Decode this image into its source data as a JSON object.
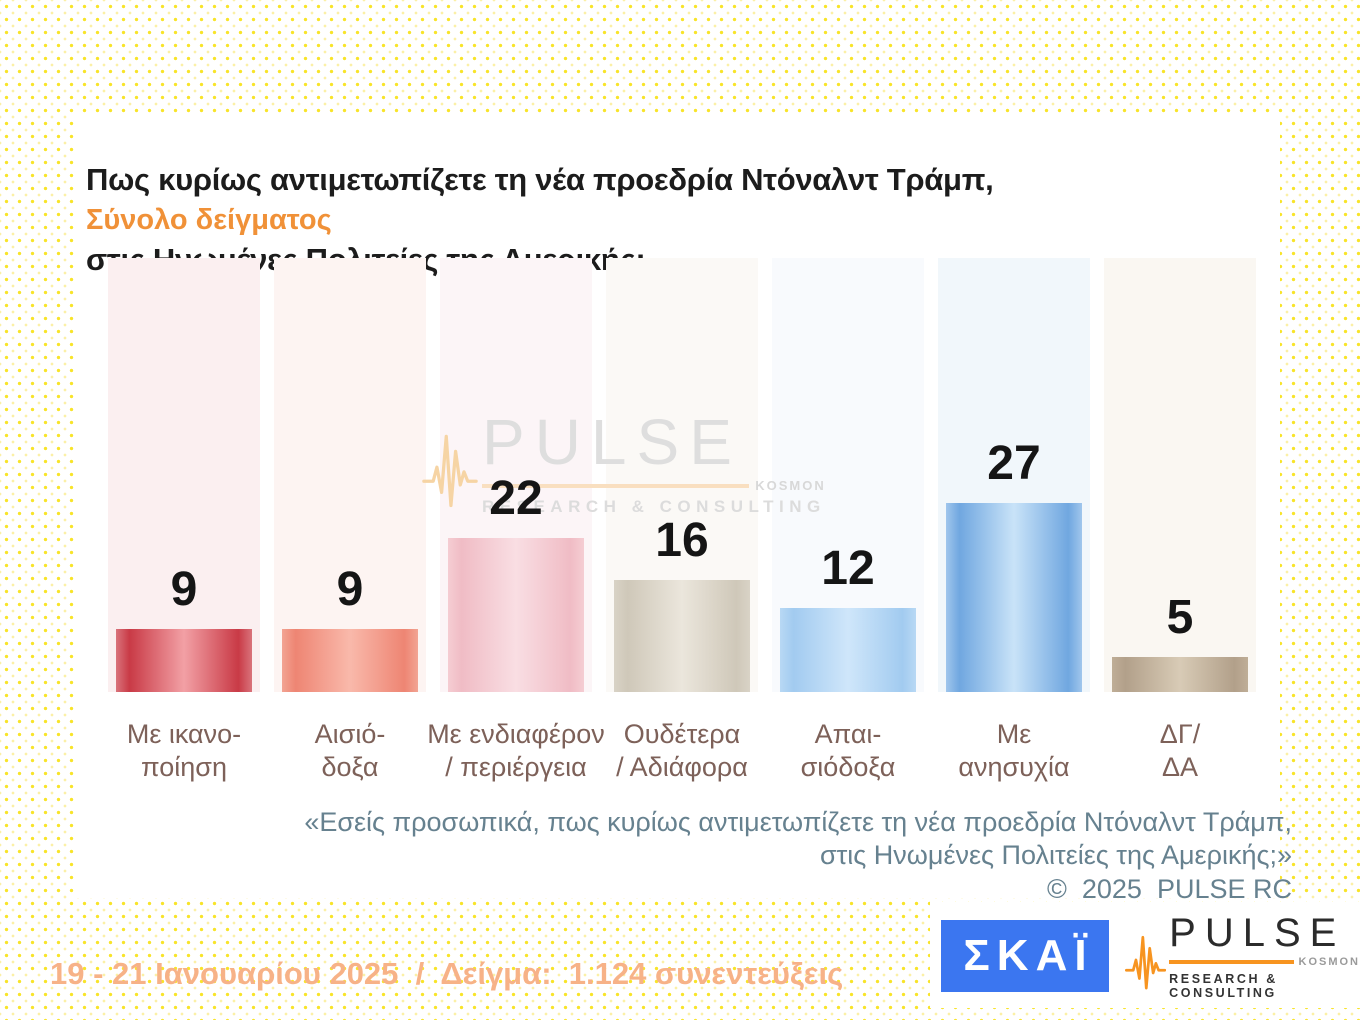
{
  "header": {
    "title_line1": "Πως κυρίως αντιμετωπίζετε τη νέα προεδρία Ντόναλντ Τράμπ,",
    "title_line2": "στις Ηνωμένες Πολιτείες της Αμερικής;",
    "subtitle": "Σύνολο δείγματος",
    "subtitle_color": "#f09138"
  },
  "chart_data": {
    "type": "bar",
    "title": "Πως κυρίως αντιμετωπίζετε τη νέα προεδρία Ντόναλντ Τράμπ, στις Ηνωμένες Πολιτείες της Αμερικής;",
    "subtitle": "Σύνολο δείγματος",
    "categories": [
      "Με ικανο-\nποίηση",
      "Αισιό-\nδοξα",
      "Με ενδιαφέρον\n/ περιέργεια",
      "Ουδέτερα\n/ Αδιάφορα",
      "Απαι-\nσιόδοξα",
      "Με\nανησυχία",
      "ΔΓ/\nΔΑ"
    ],
    "values": [
      9,
      9,
      22,
      16,
      12,
      27,
      5
    ],
    "unit": "percent",
    "xlabel": "",
    "ylabel": "",
    "ylim": [
      0,
      62
    ],
    "grid": false,
    "legend": false,
    "bar_colors": [
      {
        "outer": "#d9737b",
        "edge": "#c93a46",
        "center": "#f2a0a5"
      },
      {
        "outer": "#f2a493",
        "edge": "#ee8573",
        "center": "#f9b9ab"
      },
      {
        "outer": "#f5cdd3",
        "edge": "#f0bcc5",
        "center": "#f9dee3"
      },
      {
        "outer": "#d9d3c6",
        "edge": "#cfc8b9",
        "center": "#ebe6dc"
      },
      {
        "outer": "#b8d8f4",
        "edge": "#a2cbf0",
        "center": "#cfe6fa"
      },
      {
        "outer": "#a0c6ec",
        "edge": "#70a7e0",
        "center": "#c9e3f8"
      },
      {
        "outer": "#bfae97",
        "edge": "#b2a08a",
        "center": "#d8cbb6"
      }
    ],
    "column_bg": [
      "#fbeff0",
      "#fdf4f2",
      "#fcf5f7",
      "#fbf9f6",
      "#f8fafd",
      "#f1f7fb",
      "#faf7f2"
    ]
  },
  "watermark": {
    "brand": "PULSE",
    "tag": "KOSMON",
    "sub": "RESEARCH & CONSULTING"
  },
  "footnote": {
    "quote": "«Εσείς προσωπικά, πως κυρίως αντιμετωπίζετε τη νέα προεδρία Ντόναλντ Τράμπ,\nστις Ηνωμένες Πολιτείες της Αμερικής;»",
    "copyright": "©  2025  PULSE RC"
  },
  "footer": {
    "survey_info": "19 - 21 Ιανουαρίου 2025  /  Δείγμα:  1.124 συνεντεύξεις",
    "skai_label": "ΣΚΑΪ",
    "skai_color": "#3b76f0",
    "pulse": {
      "brand": "PULSE",
      "tag": "KOSMON",
      "sub": "RESEARCH & CONSULTING",
      "accent": "#f79420"
    }
  }
}
